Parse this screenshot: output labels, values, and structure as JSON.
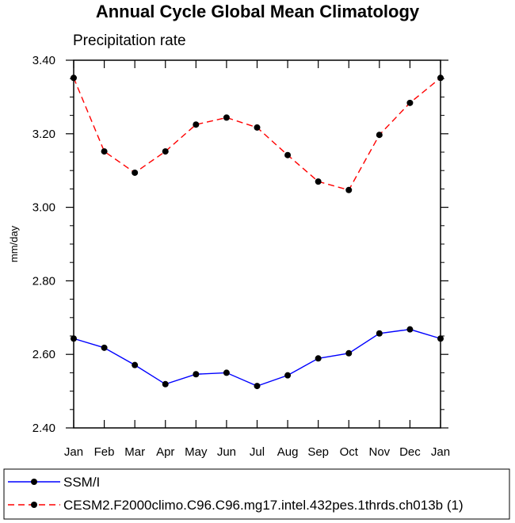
{
  "chart_data": {
    "type": "line",
    "title": "Annual Cycle Global Mean Climatology",
    "subtitle": "Precipitation rate",
    "xlabel": "",
    "ylabel": "mm/day",
    "categories": [
      "Jan",
      "Feb",
      "Mar",
      "Apr",
      "May",
      "Jun",
      "Jul",
      "Aug",
      "Sep",
      "Oct",
      "Nov",
      "Dec",
      "Jan"
    ],
    "ylim": [
      2.4,
      3.4
    ],
    "yticks": [
      2.4,
      2.6,
      2.8,
      3.0,
      3.2,
      3.4
    ],
    "ytick_labels": [
      "2.40",
      "2.60",
      "2.80",
      "3.00",
      "3.20",
      "3.40"
    ],
    "series": [
      {
        "name": "SSM/I",
        "color": "#0000ff",
        "dash": "solid",
        "values": [
          2.643,
          2.618,
          2.571,
          2.519,
          2.546,
          2.55,
          2.514,
          2.543,
          2.589,
          2.603,
          2.657,
          2.668,
          2.643
        ]
      },
      {
        "name": "CESM2.F2000climo.C96.C96.mg17.intel.432pes.1thrds.ch013b (1)",
        "color": "#ff0000",
        "dash": "dashed",
        "values": [
          3.352,
          3.152,
          3.094,
          3.152,
          3.225,
          3.244,
          3.217,
          3.142,
          3.07,
          3.047,
          3.197,
          3.284,
          3.352
        ]
      }
    ]
  }
}
